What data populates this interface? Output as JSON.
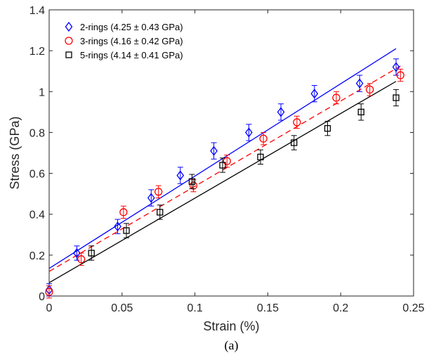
{
  "chart_data": {
    "type": "scatter",
    "xlabel": "Strain (%)",
    "ylabel": "Stress (GPa)",
    "xlim": [
      0,
      0.25
    ],
    "ylim": [
      0,
      1.4
    ],
    "x_ticks": [
      "0",
      "0.05",
      "0.1",
      "0.15",
      "0.2",
      "0.25"
    ],
    "y_ticks": [
      "0",
      "0.2",
      "0.4",
      "0.6",
      "0.8",
      "1",
      "1.2",
      "1.4"
    ],
    "caption": "(a)",
    "grid": false,
    "legend_position": "top-left",
    "series": [
      {
        "name": "2-rings (4.25 ± 0.43 GPa)",
        "color": "#0000ff",
        "marker": "diamond",
        "x": [
          0,
          0.019,
          0.047,
          0.07,
          0.09,
          0.113,
          0.137,
          0.159,
          0.182,
          0.213,
          0.238
        ],
        "y": [
          0.03,
          0.21,
          0.34,
          0.48,
          0.59,
          0.71,
          0.8,
          0.9,
          0.99,
          1.04,
          1.12
        ],
        "err": [
          0.03,
          0.035,
          0.035,
          0.04,
          0.04,
          0.04,
          0.04,
          0.04,
          0.04,
          0.04,
          0.04
        ],
        "fit": {
          "style": "solid",
          "x": [
            0,
            0.238
          ],
          "y": [
            0.135,
            1.21
          ]
        }
      },
      {
        "name": "3-rings (4.16 ± 0.42 GPa)",
        "color": "#ff0000",
        "marker": "circle",
        "x": [
          0,
          0.022,
          0.051,
          0.075,
          0.099,
          0.122,
          0.147,
          0.17,
          0.197,
          0.22,
          0.241
        ],
        "y": [
          0.02,
          0.18,
          0.41,
          0.51,
          0.54,
          0.66,
          0.77,
          0.85,
          0.97,
          1.01,
          1.08
        ],
        "err": [
          0.03,
          0.03,
          0.03,
          0.03,
          0.03,
          0.03,
          0.03,
          0.03,
          0.03,
          0.03,
          0.03
        ],
        "fit": {
          "style": "dashed",
          "x": [
            0,
            0.241
          ],
          "y": [
            0.12,
            1.125
          ]
        }
      },
      {
        "name": "5-rings (4.14 ± 0.41 GPa)",
        "color": "#000000",
        "marker": "square",
        "x": [
          0.029,
          0.053,
          0.076,
          0.098,
          0.119,
          0.145,
          0.168,
          0.191,
          0.214,
          0.238
        ],
        "y": [
          0.21,
          0.32,
          0.41,
          0.56,
          0.64,
          0.68,
          0.75,
          0.82,
          0.9,
          0.97
        ],
        "err": [
          0.035,
          0.035,
          0.035,
          0.035,
          0.035,
          0.035,
          0.035,
          0.035,
          0.04,
          0.04
        ],
        "fit": {
          "style": "solid",
          "x": [
            0,
            0.238
          ],
          "y": [
            0.065,
            1.05
          ]
        }
      }
    ]
  }
}
